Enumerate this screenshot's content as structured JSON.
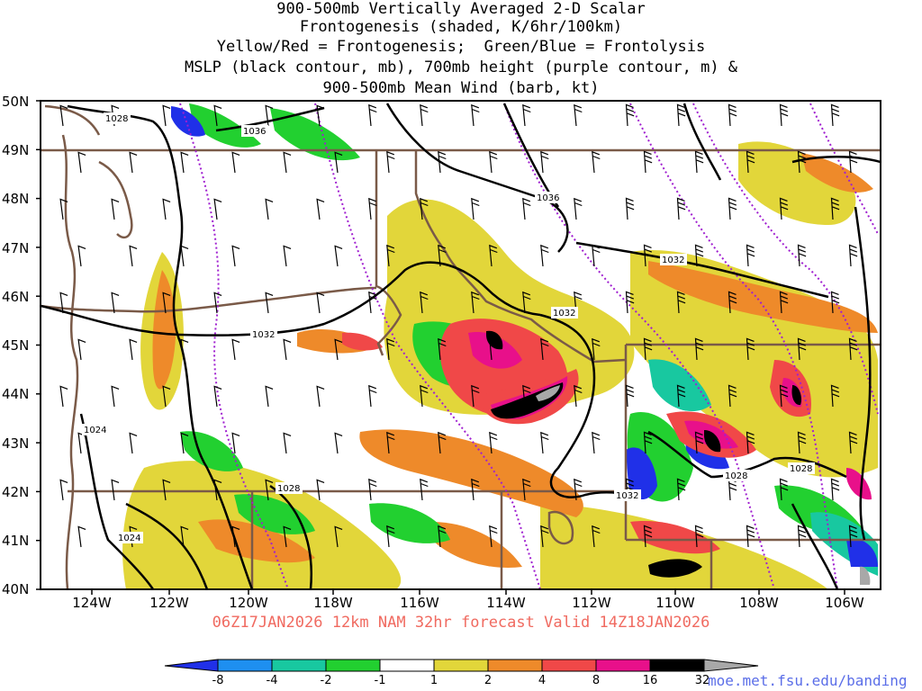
{
  "title": {
    "line1": "900-500mb Vertically Averaged 2-D Scalar",
    "line2": "Frontogenesis (shaded, K/6hr/100km)",
    "line3": "Yellow/Red = Frontogenesis;  Green/Blue = Frontolysis",
    "line4": "MSLP (black contour, mb), 700mb height (purple contour, m) &",
    "line5": "900-500mb Mean Wind (barb, kt)"
  },
  "map": {
    "lat_labels": [
      "50N",
      "49N",
      "48N",
      "47N",
      "46N",
      "45N",
      "44N",
      "43N",
      "42N",
      "41N",
      "40N"
    ],
    "lon_labels": [
      "124W",
      "122W",
      "120W",
      "118W",
      "116W",
      "114W",
      "112W",
      "110W",
      "108W",
      "106W"
    ],
    "isobar_labels": [
      "1028",
      "1036",
      "1036",
      "1032",
      "1032",
      "1032",
      "1024",
      "1028",
      "1024",
      "1032",
      "1028",
      "1028"
    ],
    "colors": {
      "frontolysis_strong": "#2030e8",
      "frontolysis_blue2": "#1e8ff0",
      "frontolysis_teal": "#18c8a0",
      "frontolysis_green": "#22d030",
      "frontogenesis_yellow": "#e2d63a",
      "frontogenesis_orange": "#ee8a2a",
      "frontogenesis_red": "#f04848",
      "frontogenesis_magenta": "#e8108a",
      "frontogenesis_black": "#000000",
      "frontogenesis_gray": "#a8a8a8",
      "isobar": "#000000",
      "height_contour": "#a020d0",
      "borders": "#7a5a48"
    }
  },
  "colorbar": {
    "labels": [
      "-8",
      "-4",
      "-2",
      "-1",
      "1",
      "2",
      "4",
      "8",
      "16",
      "32"
    ]
  },
  "footer": {
    "valid": "06Z17JAN2026 12km NAM 32hr forecast Valid 14Z18JAN2026",
    "credit": "moe.met.fsu.edu/banding"
  }
}
